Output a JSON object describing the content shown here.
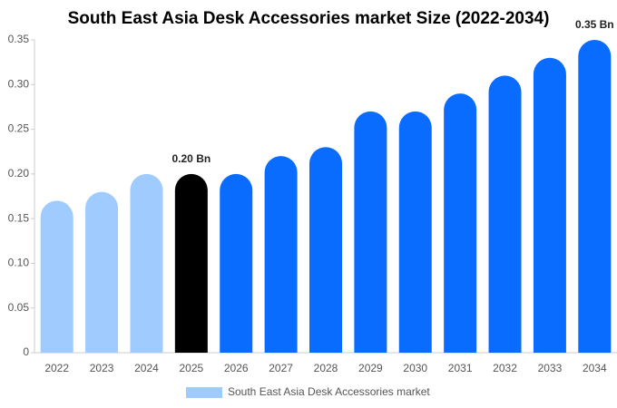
{
  "chart_data": {
    "type": "bar",
    "title": "South East Asia Desk Accessories market Size (2022-2034)",
    "categories": [
      "2022",
      "2023",
      "2024",
      "2025",
      "2026",
      "2027",
      "2028",
      "2029",
      "2030",
      "2031",
      "2032",
      "2033",
      "2034"
    ],
    "series": [
      {
        "name": "South East Asia Desk Accessories market",
        "color": "#a0cbff",
        "values": [
          0.17,
          0.18,
          0.2,
          0.2,
          0.2,
          0.22,
          0.23,
          0.27,
          0.27,
          0.29,
          0.31,
          0.33,
          0.35
        ],
        "bar_colors": [
          "#a0cbff",
          "#a0cbff",
          "#a0cbff",
          "#000000",
          "#0a6cff",
          "#0a6cff",
          "#0a6cff",
          "#0a6cff",
          "#0a6cff",
          "#0a6cff",
          "#0a6cff",
          "#0a6cff",
          "#0a6cff"
        ],
        "value_labels": [
          null,
          null,
          null,
          "0.20 Bn",
          null,
          null,
          null,
          null,
          null,
          null,
          null,
          null,
          "0.35 Bn"
        ]
      }
    ],
    "ylim": [
      0,
      0.35
    ],
    "yticks": [
      0,
      0.05,
      {
        "value": 0.1,
        "label": "0.10"
      },
      0.15,
      {
        "value": 0.2,
        "label": "0.20"
      },
      0.25,
      {
        "value": 0.3,
        "label": "0.30"
      },
      0.35
    ],
    "grid": false
  }
}
